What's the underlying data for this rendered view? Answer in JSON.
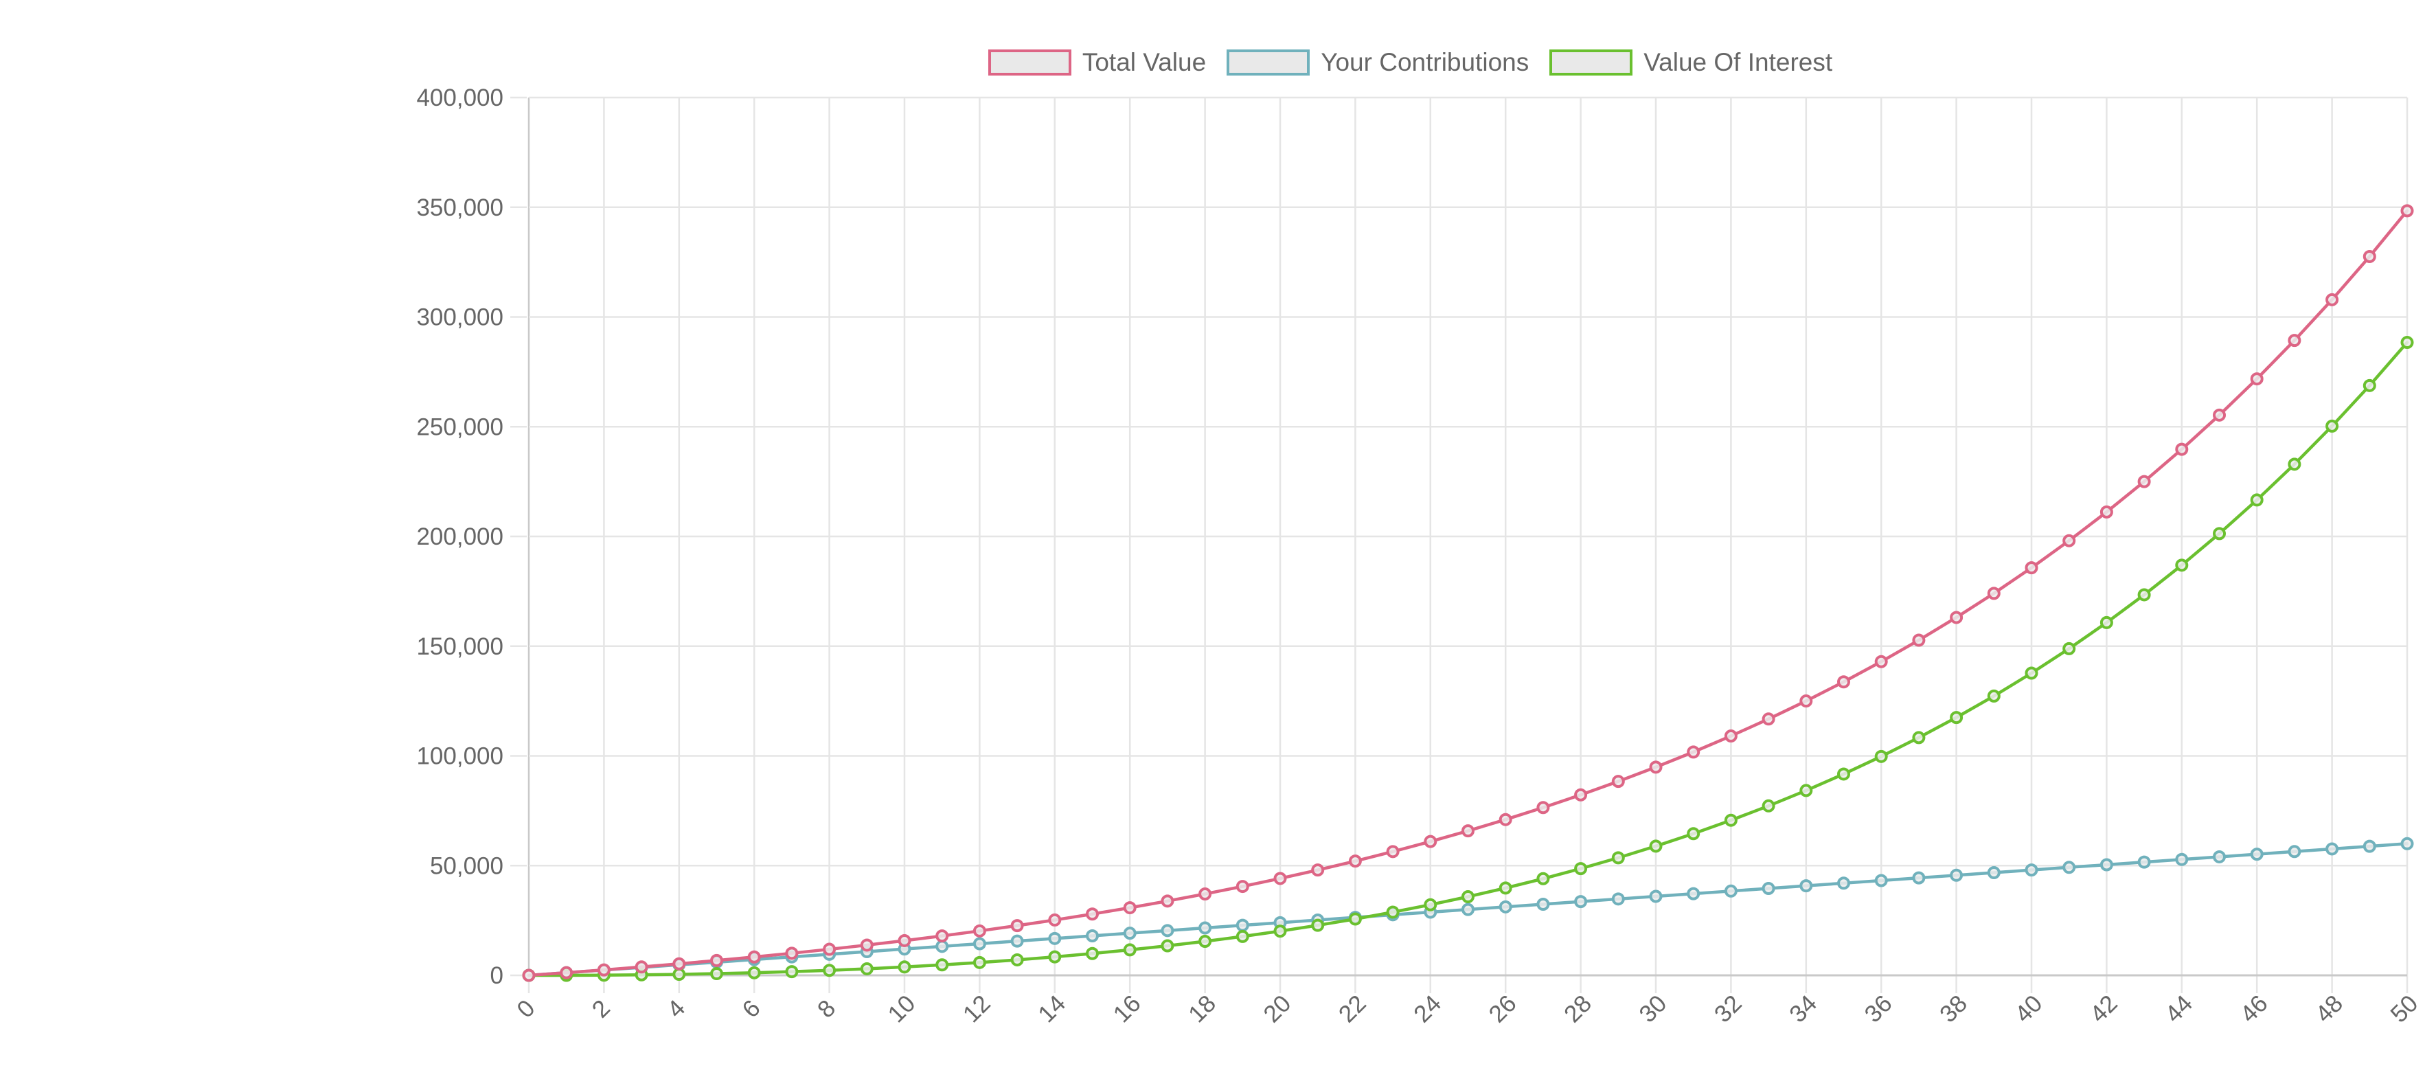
{
  "legend": {
    "position": "top",
    "box_fill": "#e9e9e9"
  },
  "colors": {
    "background": "#ffffff",
    "grid": "#e5e5e5",
    "axis_zero_line": "#c9c9c9",
    "tick_text": "#666666",
    "point_fill": "#ececec"
  },
  "chart_data": {
    "type": "line",
    "title": "",
    "xlabel": "",
    "ylabel": "",
    "grid": true,
    "legend_position": "top",
    "x": [
      0,
      1,
      2,
      3,
      4,
      5,
      6,
      7,
      8,
      9,
      10,
      11,
      12,
      13,
      14,
      15,
      16,
      17,
      18,
      19,
      20,
      21,
      22,
      23,
      24,
      25,
      26,
      27,
      28,
      29,
      30,
      31,
      32,
      33,
      34,
      35,
      36,
      37,
      38,
      39,
      40,
      41,
      42,
      43,
      44,
      45,
      46,
      47,
      48,
      49,
      50
    ],
    "x_axis": {
      "min": 0,
      "max": 50,
      "tick_step": 2,
      "tick_labels": [
        "0",
        "2",
        "4",
        "6",
        "8",
        "10",
        "12",
        "14",
        "16",
        "18",
        "20",
        "22",
        "24",
        "26",
        "28",
        "30",
        "32",
        "34",
        "36",
        "38",
        "40",
        "42",
        "44",
        "46",
        "48",
        "50"
      ]
    },
    "y_axis": {
      "min": 0,
      "max": 400000,
      "tick_step": 50000,
      "tick_labels": [
        "0",
        "50,000",
        "100,000",
        "150,000",
        "200,000",
        "250,000",
        "300,000",
        "350,000",
        "400,000"
      ]
    },
    "series": [
      {
        "name": "Total Value",
        "color": "#dd6585",
        "values": [
          0,
          1200,
          2472,
          3820,
          5250,
          6765,
          8370,
          10073,
          11877,
          13790,
          15817,
          17966,
          20244,
          22659,
          25218,
          27931,
          30807,
          33855,
          37087,
          40512,
          44143,
          47991,
          52071,
          56395,
          60979,
          65837,
          70988,
          76447,
          82234,
          88368,
          94870,
          101762,
          109068,
          116812,
          125021,
          133722,
          142945,
          152722,
          163085,
          174070,
          185714,
          198057,
          211141,
          225009,
          239710,
          255292,
          271810,
          289318,
          307877,
          327550,
          348403
        ]
      },
      {
        "name": "Your Contributions",
        "color": "#70b1bc",
        "values": [
          0,
          1200,
          2400,
          3600,
          4800,
          6000,
          7200,
          8400,
          9600,
          10800,
          12000,
          13200,
          14400,
          15600,
          16800,
          18000,
          19200,
          20400,
          21600,
          22800,
          24000,
          25200,
          26400,
          27600,
          28800,
          30000,
          31200,
          32400,
          33600,
          34800,
          36000,
          37200,
          38400,
          39600,
          40800,
          42000,
          43200,
          44400,
          45600,
          46800,
          48000,
          49200,
          50400,
          51600,
          52800,
          54000,
          55200,
          56400,
          57600,
          58800,
          60000
        ]
      },
      {
        "name": "Value Of Interest",
        "color": "#6ac02f",
        "values": [
          0,
          0,
          72,
          220,
          450,
          765,
          1170,
          1673,
          2277,
          2990,
          3817,
          4766,
          5844,
          7059,
          8418,
          9931,
          11607,
          13455,
          15487,
          17712,
          20143,
          22791,
          25671,
          28795,
          32179,
          35837,
          39788,
          44047,
          48634,
          53568,
          58870,
          64562,
          70668,
          77212,
          84221,
          91722,
          99745,
          108322,
          117485,
          127270,
          137714,
          148857,
          160741,
          173409,
          186910,
          201292,
          216610,
          232918,
          250277,
          268750,
          288403
        ]
      }
    ]
  }
}
